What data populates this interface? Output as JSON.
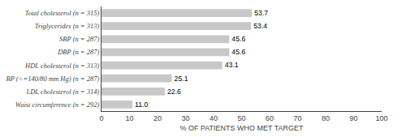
{
  "chart_data": {
    "type": "bar",
    "orientation": "horizontal",
    "categories": [
      "Waist circumference (n = 292)",
      "LDL cholesterol (n = 314)",
      "BP (<=140/80 mm Hg) (n = 287)",
      "HDL cholesterol (n = 313)",
      "DBP (n = 287)",
      "SBP (n = 287)",
      "Triglycerides (n = 313)",
      "Total cholesterol (n = 315)"
    ],
    "values": [
      11.0,
      22.6,
      25.1,
      43.1,
      45.6,
      45.6,
      53.4,
      53.7
    ],
    "value_labels": [
      "11.0",
      "22.6",
      "25.1",
      "43.1",
      "45.6",
      "45.6",
      "53.4",
      "53.7"
    ],
    "data_labels": true,
    "color": "#c8c8c8",
    "xlabel": "% OF PATIENTS WHO MET TARGET",
    "xlim": [
      0,
      100
    ],
    "xticks": [
      0,
      10,
      20,
      30,
      40,
      50,
      60,
      70,
      80,
      90,
      100
    ],
    "grid": false
  }
}
